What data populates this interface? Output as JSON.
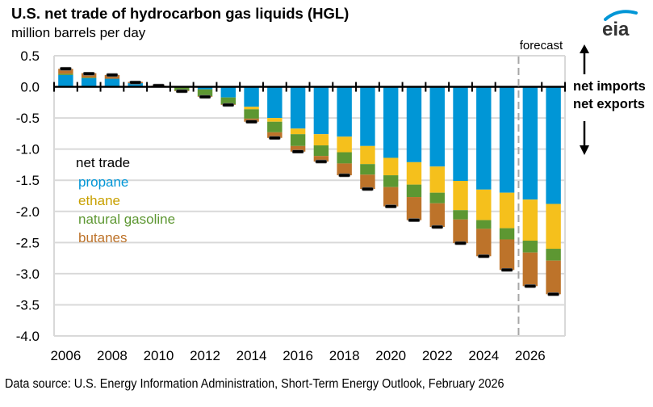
{
  "header": {
    "title": "U.S. net trade of hydrocarbon gas liquids (HGL)",
    "subtitle": "million  barrels per day",
    "logo_text": "eia"
  },
  "footer": {
    "source": "Data source: U.S. Energy Information Administration,  Short-Term Energy Outlook, February 2026"
  },
  "colors": {
    "propane": "#0096D6",
    "ethane": "#F5C01C",
    "natural_gasoline": "#5D9732",
    "butanes": "#BD732A",
    "net_marker": "#000000",
    "gridline": "#D9D9D9",
    "forecast_line": "#A6A6A6"
  },
  "chart_data": {
    "type": "bar",
    "stacked": true,
    "title": "U.S. net trade of hydrocarbon gas liquids (HGL)",
    "ylabel": "million barrels per day",
    "xlabel": "",
    "ylim": [
      -4.0,
      0.5
    ],
    "yticks": [
      0.5,
      0.0,
      -0.5,
      -1.0,
      -1.5,
      -2.0,
      -2.5,
      -3.0,
      -3.5,
      -4.0
    ],
    "ytick_labels": [
      "0.5",
      "0.0",
      "-0.5",
      "-1.0",
      "-1.5",
      "-2.0",
      "-2.5",
      "-3.0",
      "-3.5",
      "-4.0"
    ],
    "grid": true,
    "categories": [
      2006,
      2007,
      2008,
      2009,
      2010,
      2011,
      2012,
      2013,
      2014,
      2015,
      2016,
      2017,
      2018,
      2019,
      2020,
      2021,
      2022,
      2023,
      2024,
      2025,
      2026,
      2027
    ],
    "xtick_labels": [
      "2006",
      "2008",
      "2010",
      "2012",
      "2014",
      "2016",
      "2018",
      "2020",
      "2022",
      "2024",
      "2026"
    ],
    "legend": {
      "title": "net trade",
      "placement": "middle-left",
      "entries": [
        "propane",
        "ethane",
        "natural gasoline",
        "butanes"
      ]
    },
    "series": [
      {
        "name": "propane",
        "key": "propane",
        "values": [
          0.19,
          0.14,
          0.13,
          0.06,
          0.0,
          0.0,
          -0.04,
          -0.17,
          -0.32,
          -0.5,
          -0.67,
          -0.76,
          -0.8,
          -0.95,
          -1.14,
          -1.21,
          -1.28,
          -1.51,
          -1.65,
          -1.7,
          -1.81,
          -1.88
        ]
      },
      {
        "name": "ethane",
        "key": "ethane",
        "values": [
          0.0,
          0.0,
          0.0,
          0.0,
          0.0,
          0.0,
          0.0,
          0.0,
          -0.04,
          -0.06,
          -0.09,
          -0.18,
          -0.25,
          -0.29,
          -0.28,
          -0.36,
          -0.42,
          -0.47,
          -0.49,
          -0.57,
          -0.66,
          -0.72
        ]
      },
      {
        "name": "natural gasoline",
        "key": "natural_gasoline",
        "values": [
          0.02,
          0.01,
          0.0,
          -0.01,
          0.0,
          -0.06,
          -0.11,
          -0.11,
          -0.15,
          -0.17,
          -0.19,
          -0.17,
          -0.18,
          -0.17,
          -0.19,
          -0.2,
          -0.17,
          -0.15,
          -0.14,
          -0.18,
          -0.19,
          -0.19
        ]
      },
      {
        "name": "butanes",
        "key": "butanes",
        "values": [
          0.08,
          0.07,
          0.06,
          0.02,
          0.02,
          -0.01,
          -0.01,
          -0.01,
          -0.05,
          -0.09,
          -0.09,
          -0.09,
          -0.19,
          -0.23,
          -0.31,
          -0.37,
          -0.38,
          -0.38,
          -0.44,
          -0.49,
          -0.54,
          -0.54
        ]
      }
    ],
    "net_total": [
      0.29,
      0.21,
      0.19,
      0.07,
      0.02,
      -0.07,
      -0.16,
      -0.29,
      -0.56,
      -0.82,
      -1.04,
      -1.2,
      -1.42,
      -1.64,
      -1.92,
      -2.14,
      -2.25,
      -2.51,
      -2.72,
      -2.94,
      -3.2,
      -3.33
    ],
    "forecast_start": 2026,
    "annotations": {
      "forecast": "forecast",
      "net_imports": "net imports",
      "net_exports": "net exports"
    }
  }
}
